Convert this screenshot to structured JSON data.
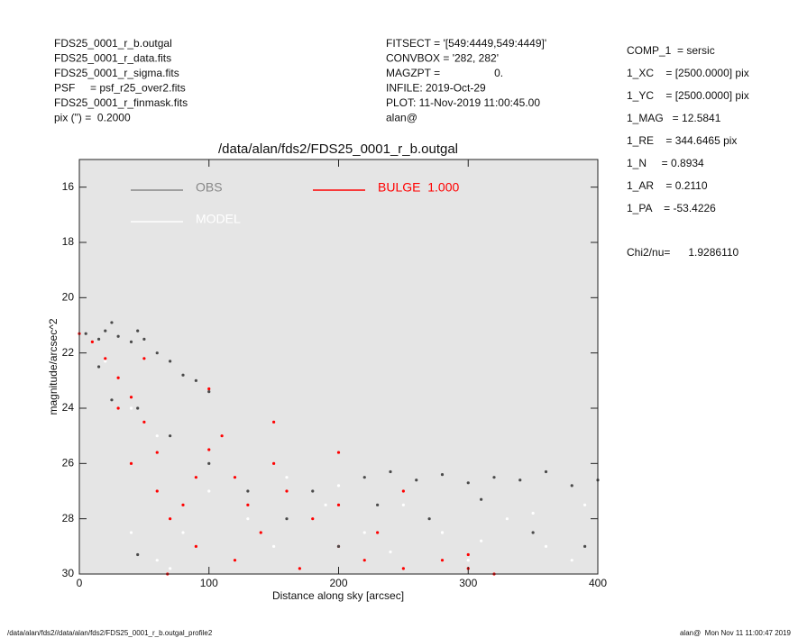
{
  "chart_data": {
    "type": "scatter",
    "title": "/data/alan/fds2/FDS25_0001_r_b.outgal",
    "xlabel": "Distance along sky [arcsec]",
    "ylabel": "magnitude/arcsec^2",
    "xlim": [
      0,
      400
    ],
    "ylim": [
      15,
      30
    ],
    "y_inverted": true,
    "xticks": [
      0,
      100,
      200,
      300,
      400
    ],
    "yticks": [
      16,
      18,
      20,
      22,
      24,
      26,
      28,
      30
    ],
    "series": [
      {
        "name": "OBS",
        "color": "#4a4a4a",
        "x": [
          5,
          15,
          20,
          25,
          30,
          40,
          45,
          50,
          60,
          70,
          80,
          90,
          100,
          15,
          25,
          45,
          70,
          100,
          130,
          160,
          180,
          220,
          240,
          260,
          280,
          300,
          320,
          340,
          360,
          380,
          400,
          230,
          270,
          310,
          350,
          390,
          45,
          200
        ],
        "values": [
          21.3,
          21.5,
          21.2,
          20.9,
          21.4,
          21.6,
          21.2,
          21.5,
          22,
          22.3,
          22.8,
          23,
          23.4,
          22.5,
          23.7,
          24,
          25,
          26,
          27,
          28,
          27,
          26.5,
          26.3,
          26.6,
          26.4,
          26.7,
          26.5,
          26.6,
          26.3,
          26.8,
          26.6,
          27.5,
          28,
          27.3,
          28.5,
          29,
          29.3,
          29
        ]
      },
      {
        "name": "MODEL",
        "color": "#ffffff",
        "x": [
          0,
          20,
          40,
          60,
          40,
          60,
          80,
          100,
          130,
          160,
          190,
          220,
          250,
          280,
          300,
          330,
          360,
          390,
          280,
          380,
          350,
          310,
          240,
          200,
          150,
          70
        ],
        "values": [
          21.3,
          22.3,
          24,
          25,
          28.5,
          29.5,
          28.5,
          27,
          28,
          26.5,
          27.5,
          28.5,
          27.5,
          28.5,
          29.5,
          28,
          29,
          27.5,
          28.5,
          29.5,
          27.8,
          28.8,
          29.2,
          26.8,
          29,
          29.8
        ]
      },
      {
        "name": "BULGE  1.000",
        "color": "#ff0000",
        "x": [
          0,
          10,
          20,
          30,
          40,
          50,
          60,
          68,
          70,
          80,
          90,
          100,
          110,
          120,
          130,
          140,
          150,
          160,
          180,
          200,
          220,
          250,
          280,
          300,
          320,
          50,
          100,
          150,
          200,
          250,
          300,
          60,
          90,
          120,
          170,
          200,
          230,
          30,
          40
        ],
        "values": [
          21.3,
          21.6,
          22.2,
          22.9,
          23.6,
          24.5,
          25.6,
          30,
          28,
          27.5,
          26.5,
          25.5,
          25,
          26.5,
          27.5,
          28.5,
          26,
          27,
          28,
          29,
          29.5,
          29.8,
          29.5,
          29.8,
          30,
          22.2,
          23.3,
          24.5,
          25.6,
          27,
          29.3,
          27,
          29,
          29.5,
          29.8,
          27.5,
          28.5,
          24,
          26
        ]
      }
    ],
    "annotations_left": [
      "FDS25_0001_r_b.outgal",
      "FDS25_0001_r_data.fits",
      "FDS25_0001_r_sigma.fits",
      "PSF     = psf_r25_over2.fits",
      "FDS25_0001_r_finmask.fits",
      "pix (\") =  0.2000"
    ],
    "annotations_center": [
      "FITSECT = '[549:4449,549:4449]'",
      "CONVBOX = '282, 282'",
      "MAGZPT =                  0.",
      "INFILE: 2019-Oct-29",
      "PLOT: 11-Nov-2019 11:00:45.00",
      "alan@"
    ],
    "annotations_right": [
      "COMP_1  = sersic",
      "1_XC    = [2500.0000] pix",
      "1_YC    = [2500.0000] pix",
      "1_MAG   = 12.5841",
      "1_RE    = 344.6465 pix",
      "1_N     = 0.8934",
      "1_AR    = 0.2110",
      "1_PA    = -53.4226"
    ],
    "chi2": "Chi2/nu=      1.9286110",
    "footer_left": "/data/alan/fds2//data/alan/fds2/FDS25_0001_r_b.outgal_profile2",
    "footer_right": "alan@  Mon Nov 11 11:00:47 2019"
  }
}
